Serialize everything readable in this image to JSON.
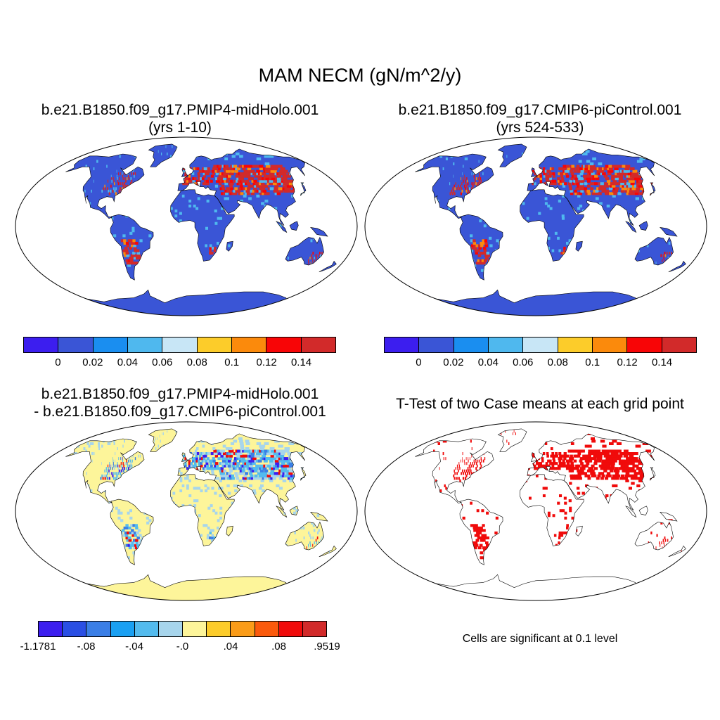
{
  "title": "MAM NECM (gN/m^2/y)",
  "panels": {
    "top_left": {
      "title_line1": "b.e21.B1850.f09_g17.PMIP4-midHolo.001",
      "title_line2": "(yrs 1-10)"
    },
    "top_right": {
      "title_line1": "b.e21.B1850.f09_g17.CMIP6-piControl.001",
      "title_line2": "(yrs 524-533)"
    },
    "bottom_left": {
      "title_line1": "b.e21.B1850.f09_g17.PMIP4-midHolo.001",
      "title_line2": "- b.e21.B1850.f09_g17.CMIP6-piControl.001"
    },
    "bottom_right": {
      "title_line1": "T-Test of two Case means at each grid point",
      "note": "Cells are significant at 0.1 level"
    }
  },
  "colorbar_abs": {
    "colors": [
      "#3c1eef",
      "#3a55d6",
      "#1a8ef0",
      "#4fb8ee",
      "#c8e6f6",
      "#fccc2a",
      "#fb8a0c",
      "#f80506",
      "#d22a2a"
    ],
    "tick_labels": [
      "0",
      "0.02",
      "0.04",
      "0.06",
      "0.08",
      "0.1",
      "0.12",
      "0.14"
    ]
  },
  "colorbar_diff": {
    "colors": [
      "#3c1eef",
      "#2a4fe4",
      "#3a7ee6",
      "#1aa0f2",
      "#53bbee",
      "#a7d5ec",
      "#fdf59a",
      "#fccc2a",
      "#fb9c18",
      "#fb5a0c",
      "#f00b0b",
      "#d22a2a"
    ],
    "tick_labels": [
      "-1.1781",
      "-.08",
      "-.04",
      "-.0",
      ".04",
      ".08",
      ".9519"
    ]
  },
  "map_colors": {
    "ocean": "#ffffff",
    "land_abs": "#3a55d6",
    "land_diff": "#fdf59a",
    "significant": "#f00b0b",
    "coast": "#000000"
  }
}
